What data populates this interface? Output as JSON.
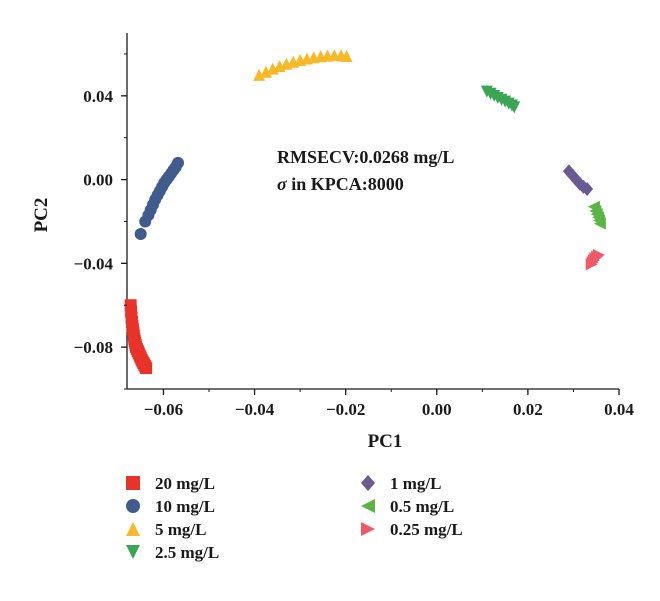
{
  "chart_data": {
    "type": "scatter",
    "title": "",
    "xlabel": "PC1",
    "ylabel": "PC2",
    "xlim": [
      -0.068,
      0.04
    ],
    "ylim": [
      -0.1,
      0.07
    ],
    "xticks": [
      -0.06,
      -0.04,
      -0.02,
      0.0,
      0.02,
      0.04
    ],
    "xtick_labels": [
      "−0.06",
      "−0.04",
      "−0.02",
      "0.00",
      "0.02",
      "0.04"
    ],
    "yticks": [
      -0.08,
      -0.04,
      0.0,
      0.04
    ],
    "ytick_labels": [
      "−0.08",
      "−0.04",
      "0.00",
      "0.04"
    ],
    "grid": false,
    "legend_position": "below",
    "annotation": {
      "line1": "RMSECV:0.0268 mg/L",
      "line2_symbol": "σ",
      "line2_text": " in KPCA:8000"
    },
    "series": [
      {
        "name": "20 mg/L",
        "color": "#e8332a",
        "marker": "square",
        "x": [
          -0.0672,
          -0.0671,
          -0.067,
          -0.0669,
          -0.0668,
          -0.0667,
          -0.0666,
          -0.0665,
          -0.0664,
          -0.0663,
          -0.0662,
          -0.0661,
          -0.066,
          -0.0658,
          -0.0656,
          -0.0654,
          -0.0652,
          -0.065,
          -0.0648,
          -0.0646,
          -0.0644,
          -0.0642,
          -0.064,
          -0.0638
        ],
        "y": [
          -0.06,
          -0.063,
          -0.066,
          -0.068,
          -0.07,
          -0.0715,
          -0.073,
          -0.0745,
          -0.076,
          -0.077,
          -0.078,
          -0.079,
          -0.08,
          -0.081,
          -0.082,
          -0.083,
          -0.084,
          -0.085,
          -0.086,
          -0.0868,
          -0.0876,
          -0.0884,
          -0.0892,
          -0.09
        ]
      },
      {
        "name": "10 mg/L",
        "color": "#3f5c8c",
        "marker": "circle",
        "x": [
          -0.065,
          -0.064,
          -0.0633,
          -0.0628,
          -0.0623,
          -0.0618,
          -0.0613,
          -0.0608,
          -0.0603,
          -0.0598,
          -0.0593,
          -0.0588,
          -0.0583,
          -0.0578,
          -0.0573,
          -0.0568
        ],
        "y": [
          -0.026,
          -0.02,
          -0.017,
          -0.0145,
          -0.012,
          -0.0095,
          -0.0075,
          -0.0055,
          -0.0035,
          -0.0015,
          0.0,
          0.0015,
          0.003,
          0.0045,
          0.006,
          0.008
        ]
      },
      {
        "name": "5 mg/L",
        "color": "#f7b928",
        "marker": "triangle-up",
        "x": [
          -0.039,
          -0.0375,
          -0.036,
          -0.0345,
          -0.033,
          -0.0315,
          -0.03,
          -0.0285,
          -0.027,
          -0.0255,
          -0.024,
          -0.0225,
          -0.021,
          -0.0198
        ],
        "y": [
          0.05,
          0.0515,
          0.053,
          0.0542,
          0.0553,
          0.0563,
          0.0571,
          0.0578,
          0.0584,
          0.0589,
          0.0592,
          0.0594,
          0.0594,
          0.059
        ]
      },
      {
        "name": "2.5 mg/L",
        "color": "#3aa655",
        "marker": "triangle-down",
        "x": [
          0.011,
          0.0118,
          0.0126,
          0.0134,
          0.0142,
          0.015,
          0.0158,
          0.0165,
          0.017
        ],
        "y": [
          0.042,
          0.041,
          0.04,
          0.039,
          0.0381,
          0.0372,
          0.0363,
          0.0354,
          0.0345
        ]
      },
      {
        "name": "1 mg/L",
        "color": "#6a5a94",
        "marker": "diamond",
        "x": [
          0.029,
          0.0298,
          0.0306,
          0.0314,
          0.0322,
          0.033
        ],
        "y": [
          0.004,
          0.002,
          0.0,
          -0.002,
          -0.0035,
          -0.0045
        ]
      },
      {
        "name": "0.5 mg/L",
        "color": "#5ab544",
        "marker": "triangle-left",
        "x": [
          0.0345,
          0.0348,
          0.0351,
          0.0354,
          0.0356,
          0.0358
        ],
        "y": [
          -0.013,
          -0.015,
          -0.0165,
          -0.018,
          -0.0195,
          -0.021
        ]
      },
      {
        "name": "0.25 mg/L",
        "color": "#ee5a68",
        "marker": "triangle-right",
        "x": [
          0.034,
          0.0342,
          0.0345,
          0.0348,
          0.0352,
          0.0356
        ],
        "y": [
          -0.0405,
          -0.0395,
          -0.0385,
          -0.0375,
          -0.0368,
          -0.036
        ]
      }
    ]
  }
}
